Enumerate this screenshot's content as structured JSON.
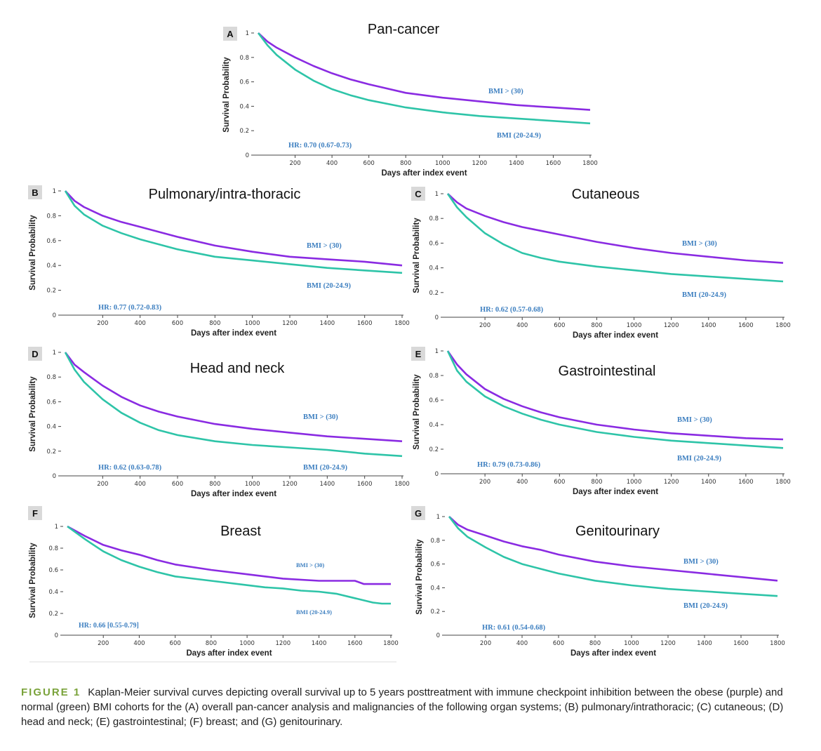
{
  "colors": {
    "obese": "#8a2be2",
    "normal": "#2ec4a8",
    "annotation": "#3d7fc0",
    "figure_label": "#7aa33b"
  },
  "caption": {
    "label": "FIGURE 1",
    "text": "Kaplan-Meier survival curves depicting overall survival up to 5 years posttreatment with immune checkpoint inhibition between the obese (purple) and normal (green) BMI cohorts for the (A) overall pan-cancer analysis and malignancies of the following organ systems; (B) pulmonary/intrathoracic; (C) cutaneous; (D) head and neck; (E) gastrointestinal; (F) breast; and (G) genitourinary."
  },
  "chart_data": [
    {
      "panel": "A",
      "type": "line",
      "title": "Pan-cancer",
      "xlabel": "Days after index event",
      "ylabel": "Survival Probability",
      "xlim": [
        0,
        1800
      ],
      "ylim": [
        0,
        1
      ],
      "xticks": [
        200,
        400,
        600,
        800,
        1000,
        1200,
        1400,
        1600,
        1800
      ],
      "yticks": [
        0,
        0.2,
        0.4,
        0.6,
        0.8,
        1
      ],
      "hr": "HR: 0.70 (0.67-0.73)",
      "series": [
        {
          "name": "BMI > (30)",
          "x": [
            0,
            50,
            100,
            200,
            300,
            400,
            500,
            600,
            800,
            1000,
            1200,
            1400,
            1600,
            1800
          ],
          "y": [
            1,
            0.93,
            0.88,
            0.8,
            0.73,
            0.67,
            0.62,
            0.58,
            0.51,
            0.47,
            0.44,
            0.41,
            0.39,
            0.37
          ]
        },
        {
          "name": "BMI (20-24.9)",
          "x": [
            0,
            50,
            100,
            200,
            300,
            400,
            500,
            600,
            800,
            1000,
            1200,
            1400,
            1600,
            1800
          ],
          "y": [
            1,
            0.9,
            0.82,
            0.7,
            0.61,
            0.54,
            0.49,
            0.45,
            0.39,
            0.35,
            0.32,
            0.3,
            0.28,
            0.26
          ]
        }
      ]
    },
    {
      "panel": "B",
      "type": "line",
      "title": "Pulmonary/intra-thoracic",
      "xlabel": "Days after index event",
      "ylabel": "Survival Probability",
      "xlim": [
        0,
        1800
      ],
      "ylim": [
        0,
        1
      ],
      "xticks": [
        200,
        400,
        600,
        800,
        1000,
        1200,
        1400,
        1600,
        1800
      ],
      "yticks": [
        0,
        0.2,
        0.4,
        0.6,
        0.8,
        1
      ],
      "hr": "HR: 0.77 (0.72-0.83)",
      "series": [
        {
          "name": "BMI > (30)",
          "x": [
            0,
            50,
            100,
            200,
            300,
            400,
            500,
            600,
            800,
            1000,
            1200,
            1400,
            1600,
            1800
          ],
          "y": [
            1,
            0.92,
            0.87,
            0.8,
            0.75,
            0.71,
            0.67,
            0.63,
            0.56,
            0.51,
            0.47,
            0.45,
            0.43,
            0.4
          ]
        },
        {
          "name": "BMI (20-24.9)",
          "x": [
            0,
            50,
            100,
            200,
            300,
            400,
            500,
            600,
            800,
            1000,
            1200,
            1400,
            1600,
            1800
          ],
          "y": [
            1,
            0.88,
            0.81,
            0.72,
            0.66,
            0.61,
            0.57,
            0.53,
            0.47,
            0.44,
            0.41,
            0.38,
            0.36,
            0.34
          ]
        }
      ]
    },
    {
      "panel": "C",
      "type": "line",
      "title": "Cutaneous",
      "xlabel": "Days after index event",
      "ylabel": "Survival Probability",
      "xlim": [
        0,
        1800
      ],
      "ylim": [
        0,
        1
      ],
      "xticks": [
        200,
        400,
        600,
        800,
        1000,
        1200,
        1400,
        1600,
        1800
      ],
      "yticks": [
        0,
        0.2,
        0.4,
        0.6,
        0.8,
        1
      ],
      "hr": "HR: 0.62 (0.57-0.68)",
      "series": [
        {
          "name": "BMI > (30)",
          "x": [
            0,
            50,
            100,
            200,
            300,
            400,
            500,
            600,
            800,
            1000,
            1200,
            1400,
            1600,
            1800
          ],
          "y": [
            1,
            0.93,
            0.88,
            0.82,
            0.77,
            0.73,
            0.7,
            0.67,
            0.61,
            0.56,
            0.52,
            0.49,
            0.46,
            0.44
          ]
        },
        {
          "name": "BMI (20-24.9)",
          "x": [
            0,
            50,
            100,
            200,
            300,
            400,
            500,
            600,
            800,
            1000,
            1200,
            1400,
            1600,
            1800
          ],
          "y": [
            1,
            0.89,
            0.81,
            0.68,
            0.59,
            0.52,
            0.48,
            0.45,
            0.41,
            0.38,
            0.35,
            0.33,
            0.31,
            0.29
          ]
        }
      ]
    },
    {
      "panel": "D",
      "type": "line",
      "title": "Head and neck",
      "xlabel": "Days after index event",
      "ylabel": "Survival Probability",
      "xlim": [
        0,
        1800
      ],
      "ylim": [
        0,
        1
      ],
      "xticks": [
        200,
        400,
        600,
        800,
        1000,
        1200,
        1400,
        1600,
        1800
      ],
      "yticks": [
        0,
        0.2,
        0.4,
        0.6,
        0.8,
        1
      ],
      "hr": "HR: 0.62 (0.63-0.78)",
      "series": [
        {
          "name": "BMI > (30)",
          "x": [
            0,
            50,
            100,
            200,
            300,
            400,
            500,
            600,
            800,
            1000,
            1200,
            1400,
            1600,
            1800
          ],
          "y": [
            1,
            0.9,
            0.84,
            0.73,
            0.64,
            0.57,
            0.52,
            0.48,
            0.42,
            0.38,
            0.35,
            0.32,
            0.3,
            0.28
          ]
        },
        {
          "name": "BMI (20-24.9)",
          "x": [
            0,
            50,
            100,
            200,
            300,
            400,
            500,
            600,
            800,
            1000,
            1200,
            1400,
            1600,
            1800
          ],
          "y": [
            1,
            0.86,
            0.76,
            0.62,
            0.51,
            0.43,
            0.37,
            0.33,
            0.28,
            0.25,
            0.23,
            0.21,
            0.18,
            0.16
          ]
        }
      ]
    },
    {
      "panel": "E",
      "type": "line",
      "title": "Gastrointestinal",
      "xlabel": "Days after index event",
      "ylabel": "Survival Probability",
      "xlim": [
        0,
        1800
      ],
      "ylim": [
        0,
        1
      ],
      "xticks": [
        200,
        400,
        600,
        800,
        1000,
        1200,
        1400,
        1600,
        1800
      ],
      "yticks": [
        0,
        0.2,
        0.4,
        0.6,
        0.8,
        1
      ],
      "hr": "HR: 0.79 (0.73-0.86)",
      "series": [
        {
          "name": "BMI > (30)",
          "x": [
            0,
            50,
            100,
            200,
            300,
            400,
            500,
            600,
            800,
            1000,
            1200,
            1400,
            1600,
            1800
          ],
          "y": [
            1,
            0.89,
            0.81,
            0.69,
            0.61,
            0.55,
            0.5,
            0.46,
            0.4,
            0.36,
            0.33,
            0.31,
            0.29,
            0.28
          ]
        },
        {
          "name": "BMI (20-24.9)",
          "x": [
            0,
            50,
            100,
            200,
            300,
            400,
            500,
            600,
            800,
            1000,
            1200,
            1400,
            1600,
            1800
          ],
          "y": [
            1,
            0.84,
            0.75,
            0.63,
            0.55,
            0.49,
            0.44,
            0.4,
            0.34,
            0.3,
            0.27,
            0.25,
            0.23,
            0.21
          ]
        }
      ]
    },
    {
      "panel": "F",
      "type": "line",
      "title": "Breast",
      "xlabel": "Days after index event",
      "ylabel": "Survival Probability",
      "xlim": [
        0,
        1800
      ],
      "ylim": [
        0,
        1
      ],
      "xticks": [
        200,
        400,
        600,
        800,
        1000,
        1200,
        1400,
        1600,
        1800
      ],
      "yticks": [
        0,
        0.2,
        0.4,
        0.6,
        0.8,
        1
      ],
      "hr": "HR: 0.66 [0.55-0.79]",
      "series": [
        {
          "name": "BMI > (30)",
          "x": [
            0,
            100,
            200,
            300,
            400,
            500,
            600,
            800,
            1000,
            1100,
            1200,
            1400,
            1600,
            1650,
            1750,
            1800
          ],
          "y": [
            1,
            0.91,
            0.83,
            0.78,
            0.74,
            0.69,
            0.65,
            0.6,
            0.56,
            0.54,
            0.52,
            0.5,
            0.5,
            0.47,
            0.47,
            0.47
          ]
        },
        {
          "name": "BMI (20-24.9)",
          "x": [
            0,
            100,
            200,
            300,
            400,
            500,
            600,
            800,
            1000,
            1100,
            1200,
            1300,
            1400,
            1500,
            1600,
            1700,
            1750,
            1800
          ],
          "y": [
            1,
            0.88,
            0.77,
            0.69,
            0.63,
            0.58,
            0.54,
            0.5,
            0.46,
            0.44,
            0.43,
            0.41,
            0.4,
            0.38,
            0.34,
            0.3,
            0.29,
            0.29
          ]
        }
      ]
    },
    {
      "panel": "G",
      "type": "line",
      "title": "Genitourinary",
      "xlabel": "Days after index event",
      "ylabel": "Survival Probability",
      "xlim": [
        0,
        1800
      ],
      "ylim": [
        0,
        1
      ],
      "xticks": [
        200,
        400,
        600,
        800,
        1000,
        1200,
        1400,
        1600,
        1800
      ],
      "yticks": [
        0,
        0.2,
        0.4,
        0.6,
        0.8,
        1
      ],
      "hr": "HR: 0.61 (0.54-0.68)",
      "series": [
        {
          "name": "BMI > (30)",
          "x": [
            0,
            50,
            100,
            200,
            300,
            400,
            500,
            600,
            800,
            1000,
            1200,
            1400,
            1600,
            1800
          ],
          "y": [
            1,
            0.93,
            0.89,
            0.84,
            0.79,
            0.75,
            0.72,
            0.68,
            0.62,
            0.58,
            0.55,
            0.52,
            0.49,
            0.46
          ]
        },
        {
          "name": "BMI (20-24.9)",
          "x": [
            0,
            50,
            100,
            200,
            300,
            400,
            500,
            600,
            800,
            1000,
            1200,
            1400,
            1600,
            1800
          ],
          "y": [
            1,
            0.9,
            0.83,
            0.74,
            0.66,
            0.6,
            0.56,
            0.52,
            0.46,
            0.42,
            0.39,
            0.37,
            0.35,
            0.33
          ]
        }
      ]
    }
  ]
}
